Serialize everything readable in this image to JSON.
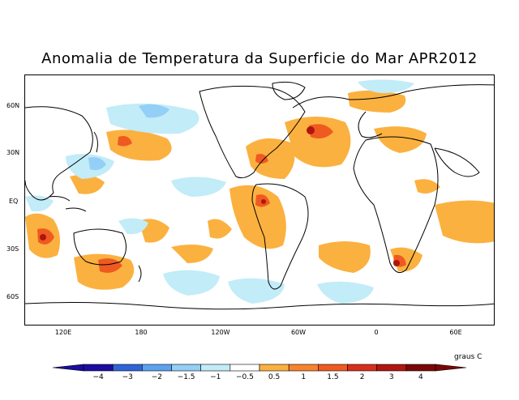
{
  "title": "Anomalia de Temperatura da Superficie do Mar APR2012",
  "lat_labels": [
    "60N",
    "30N",
    "EQ",
    "30S",
    "60S"
  ],
  "lon_labels": [
    "120E",
    "180",
    "120W",
    "60W",
    "0",
    "60E"
  ],
  "units": "graus C",
  "colorbar": {
    "labels": [
      "−4",
      "−3",
      "−2",
      "−1.5",
      "−1",
      "−0.5",
      "0.5",
      "1",
      "1.5",
      "2",
      "3",
      "4"
    ],
    "colors": [
      "#1b0da0",
      "#2f64d8",
      "#5ca2ef",
      "#93cff6",
      "#c2ecf7",
      "#ffffff",
      "#fbb13f",
      "#f8832c",
      "#ef5a21",
      "#d62f1a",
      "#b0150f",
      "#7a0706"
    ]
  },
  "colors": {
    "ocean_warm": "#fbb13f",
    "ocean_hot": "#d62f1a",
    "ocean_cool": "#c2ecf7",
    "ocean_cold": "#93cff6"
  }
}
